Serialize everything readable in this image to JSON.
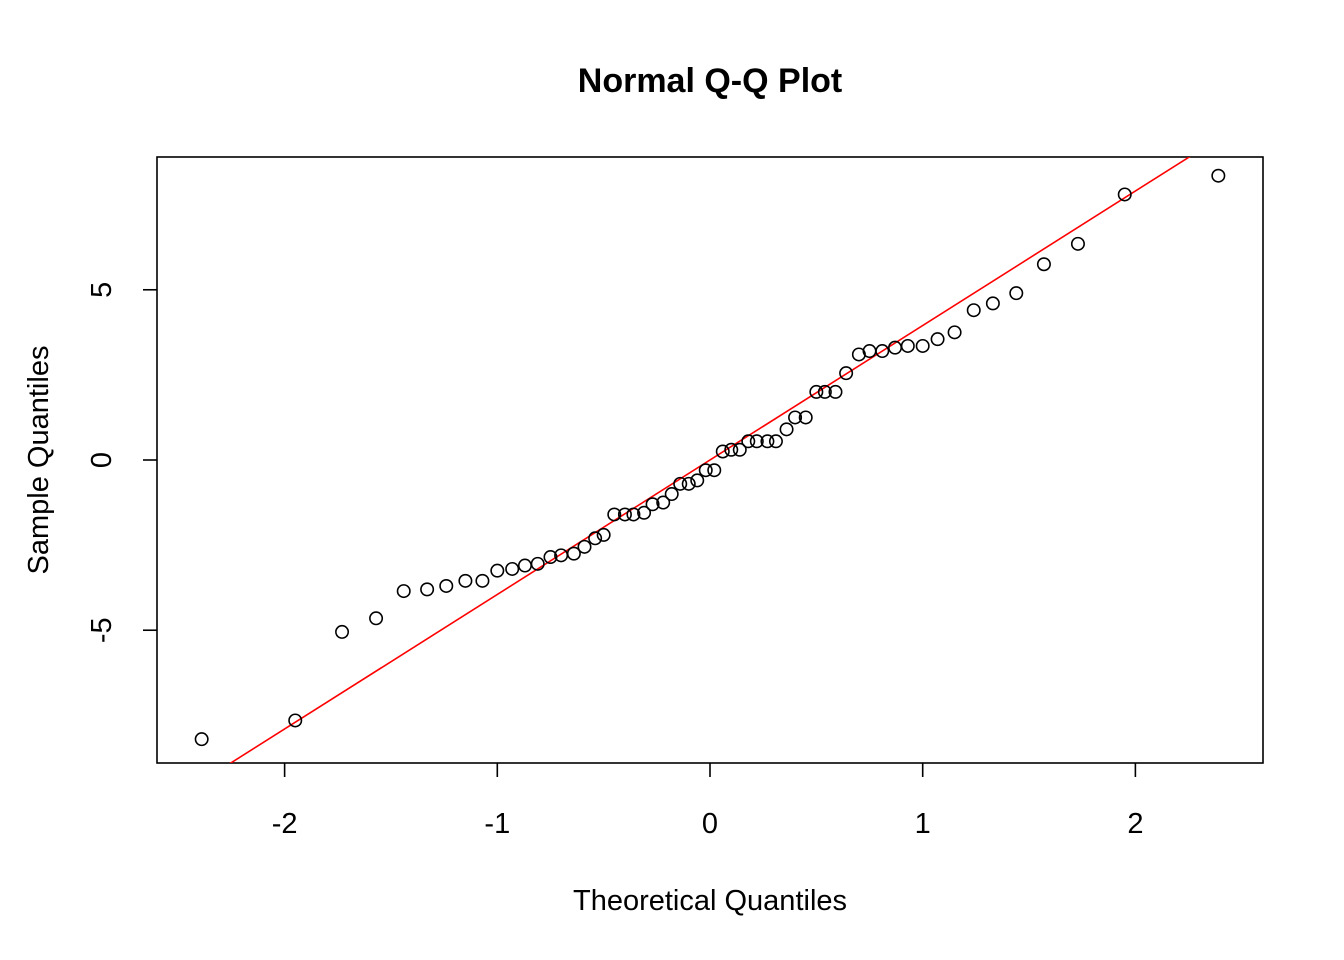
{
  "chart_data": {
    "type": "scatter",
    "title": "Normal Q-Q Plot",
    "xlabel": "Theoretical Quantiles",
    "ylabel": "Sample Quantiles",
    "xlim": [
      -2.6,
      2.6
    ],
    "ylim": [
      -8.9,
      8.9
    ],
    "x_ticks": [
      -2,
      -1,
      0,
      1,
      2
    ],
    "x_tick_labels": [
      "-2",
      "-1",
      "0",
      "1",
      "2"
    ],
    "y_ticks": [
      -5,
      0,
      5
    ],
    "y_tick_labels": [
      "-5",
      "0",
      "5"
    ],
    "grid": false,
    "legend": "none",
    "point_color": "#000000",
    "line_color": "#ff0000",
    "reference_line": {
      "intercept": 0.0,
      "slope": 3.95
    },
    "series": [
      {
        "x": [
          -2.39,
          -1.95,
          -1.73,
          -1.57,
          -1.44,
          -1.33,
          -1.24,
          -1.15,
          -1.07,
          -1.0,
          -0.93,
          -0.87,
          -0.81,
          -0.75,
          -0.7,
          -0.64,
          -0.59,
          -0.54,
          -0.5,
          -0.45,
          -0.4,
          -0.36,
          -0.31,
          -0.27,
          -0.22,
          -0.18,
          -0.14,
          -0.1,
          -0.06,
          -0.02,
          0.02,
          0.06,
          0.1,
          0.14,
          0.18,
          0.22,
          0.27,
          0.31,
          0.36,
          0.4,
          0.45,
          0.5,
          0.54,
          0.59,
          0.64,
          0.7,
          0.75,
          0.81,
          0.87,
          0.93,
          1.0,
          1.07,
          1.15,
          1.24,
          1.33,
          1.44,
          1.57,
          1.73,
          1.95,
          2.39
        ],
        "y": [
          -8.2,
          -7.65,
          -5.05,
          -4.65,
          -3.85,
          -3.8,
          -3.7,
          -3.55,
          -3.55,
          -3.25,
          -3.2,
          -3.1,
          -3.05,
          -2.85,
          -2.8,
          -2.75,
          -2.55,
          -2.3,
          -2.2,
          -1.6,
          -1.6,
          -1.6,
          -1.55,
          -1.3,
          -1.25,
          -1.0,
          -0.7,
          -0.7,
          -0.6,
          -0.3,
          -0.3,
          0.25,
          0.3,
          0.3,
          0.55,
          0.55,
          0.55,
          0.55,
          0.9,
          1.25,
          1.25,
          2.0,
          2.0,
          2.0,
          2.55,
          3.1,
          3.2,
          3.2,
          3.3,
          3.35,
          3.35,
          3.55,
          3.75,
          4.4,
          4.6,
          4.9,
          5.75,
          6.35,
          7.8,
          8.35
        ]
      }
    ]
  }
}
